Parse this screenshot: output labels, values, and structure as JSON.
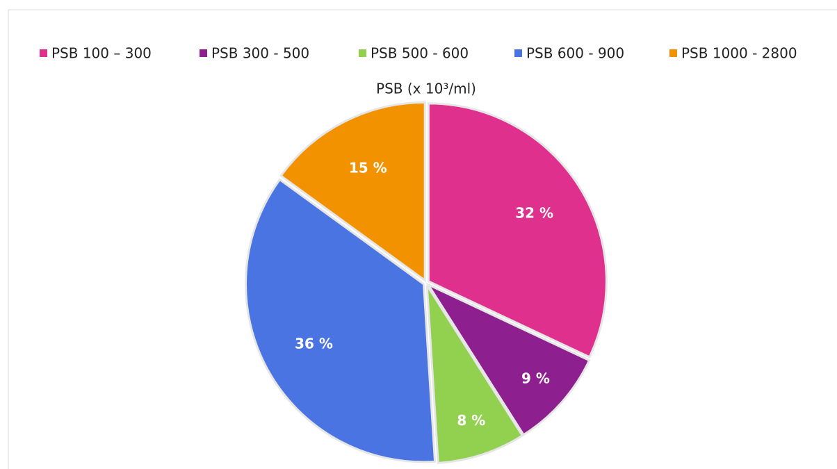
{
  "chart_data": {
    "type": "pie",
    "title": "PSB (x 10³/ml)",
    "categories": [
      "PSB 100 – 300",
      "PSB 300 - 500",
      "PSB 500 - 600",
      "PSB 600 - 900",
      "PSB 1000 - 2800"
    ],
    "values": [
      32,
      9,
      8,
      36,
      15
    ],
    "value_labels": [
      "32 %",
      "9 %",
      "8 %",
      "36 %",
      "15 %"
    ],
    "colors": [
      "#e0308e",
      "#8e1f8e",
      "#92d050",
      "#4a74e2",
      "#f39200"
    ],
    "legend": "top"
  }
}
